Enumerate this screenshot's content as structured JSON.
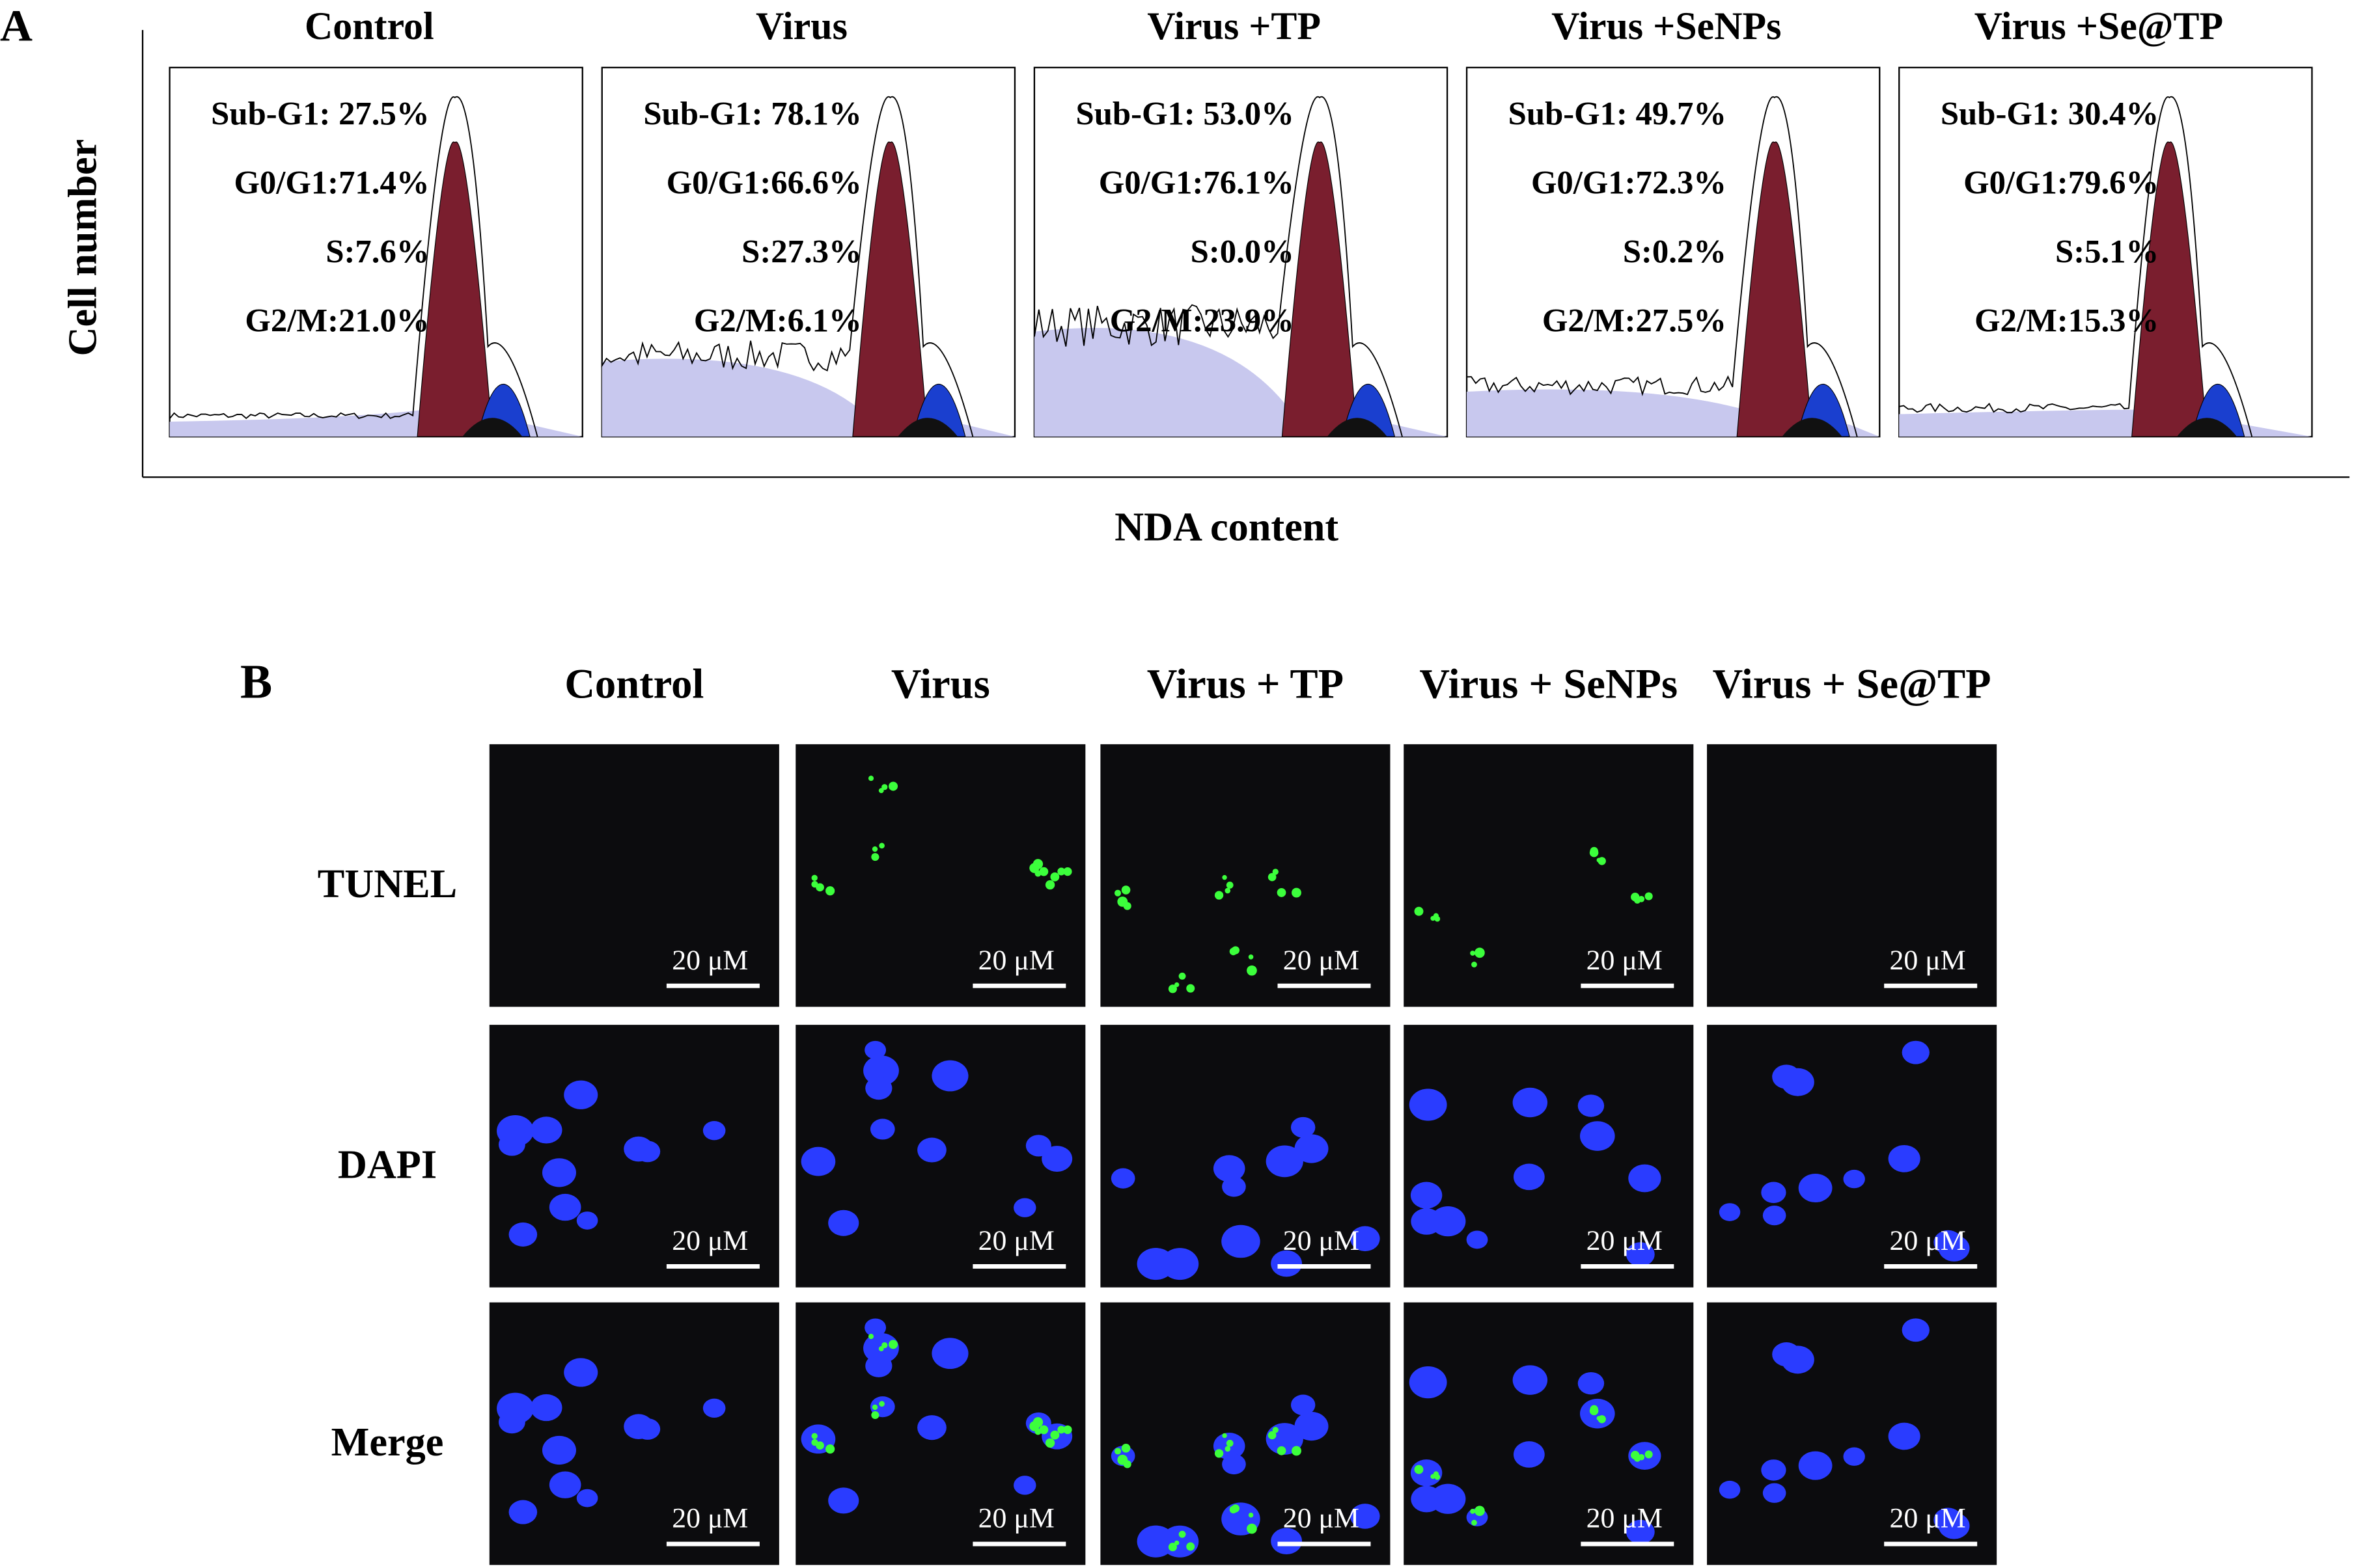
{
  "panel_a": {
    "label": "A",
    "y_axis_label": "Cell number",
    "x_axis_label": "NDA content",
    "plots": [
      {
        "title": "Control",
        "stats": [
          "Sub-G1: 27.5%",
          "G0/G1:71.4%",
          "S:7.6%",
          "G2/M:21.0%"
        ]
      },
      {
        "title": "Virus",
        "stats": [
          "Sub-G1: 78.1%",
          "G0/G1:66.6%",
          "S:27.3%",
          "G2/M:6.1%"
        ]
      },
      {
        "title": "Virus +TP",
        "stats": [
          "Sub-G1: 53.0%",
          "G0/G1:76.1%",
          "S:0.0%",
          "G2/M:23.9%"
        ]
      },
      {
        "title": "Virus +SeNPs",
        "stats": [
          "Sub-G1: 49.7%",
          "G0/G1:72.3%",
          "S:0.2%",
          "G2/M:27.5%"
        ]
      },
      {
        "title": "Virus +Se@TP",
        "stats": [
          "Sub-G1: 30.4%",
          "G0/G1:79.6%",
          "S:5.1%",
          "G2/M:15.3%"
        ]
      }
    ]
  },
  "panel_b": {
    "label": "B",
    "columns": [
      "Control",
      "Virus",
      "Virus + TP",
      "Virus + SeNPs",
      "Virus + Se@TP"
    ],
    "rows": [
      "TUNEL",
      "DAPI",
      "Merge"
    ],
    "scale_bar": "20 μM"
  }
}
